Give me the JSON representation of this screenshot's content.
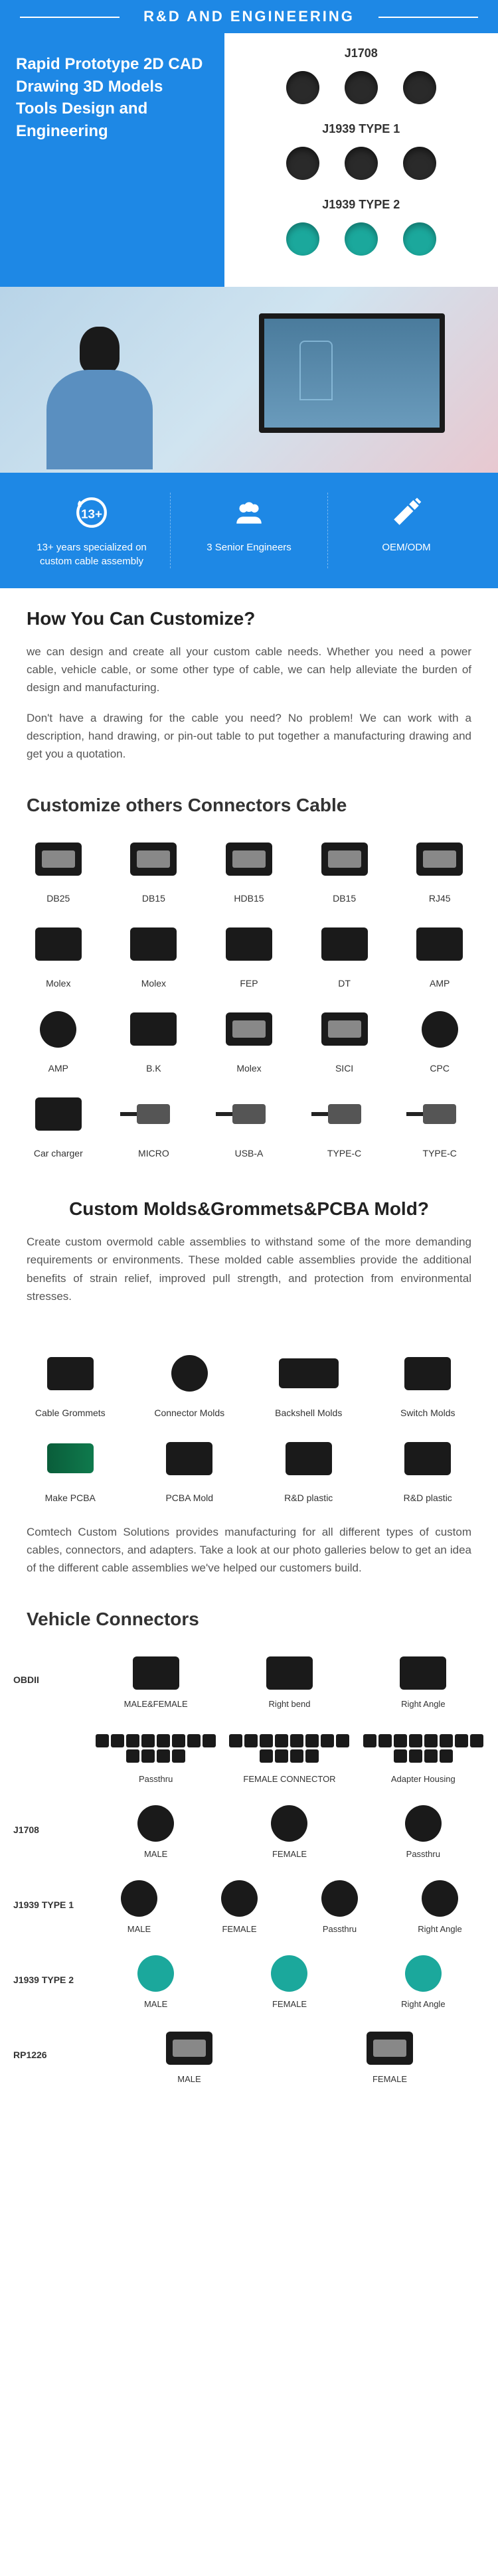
{
  "headerTitle": "R&D AND ENGINEERING",
  "hero": {
    "title": "Rapid Prototype 2D CAD Drawing 3D Models Tools Design and Engineering",
    "connectors": [
      {
        "label": "J1708",
        "variants": 3,
        "color": "dark"
      },
      {
        "label": "J1939 TYPE 1",
        "variants": 3,
        "color": "dark"
      },
      {
        "label": "J1939 TYPE 2",
        "variants": 3,
        "color": "teal"
      }
    ]
  },
  "stats": [
    {
      "icon": "badge",
      "text": "13+ years specialized on custom cable assembly"
    },
    {
      "icon": "team",
      "text": "3 Senior Engineers"
    },
    {
      "icon": "pencil",
      "text": "OEM/ODM"
    }
  ],
  "customize": {
    "title": "How You Can Customize?",
    "p1": "we can design and create all your custom cable needs. Whether you need a power cable, vehicle cable, or some other type of cable, we can help alleviate the burden of design and manufacturing.",
    "p2": "Don't have a drawing for the cable you need? No problem! We can work with a description, hand drawing, or pin-out table to put together a manufacturing drawing and get you a quotation."
  },
  "connectorsTitle": "Customize others Connectors Cable",
  "connectorsGrid": [
    {
      "label": "DB25",
      "shape": "port"
    },
    {
      "label": "DB15",
      "shape": "port"
    },
    {
      "label": "HDB15",
      "shape": "port"
    },
    {
      "label": "DB15",
      "shape": "port"
    },
    {
      "label": "RJ45",
      "shape": "port"
    },
    {
      "label": "Molex",
      "shape": "default"
    },
    {
      "label": "Molex",
      "shape": "default"
    },
    {
      "label": "FEP",
      "shape": "default"
    },
    {
      "label": "DT",
      "shape": "default"
    },
    {
      "label": "AMP",
      "shape": "default"
    },
    {
      "label": "AMP",
      "shape": "round"
    },
    {
      "label": "B.K",
      "shape": "default"
    },
    {
      "label": "Molex",
      "shape": "port"
    },
    {
      "label": "SICI",
      "shape": "port"
    },
    {
      "label": "CPC",
      "shape": "round"
    },
    {
      "label": "Car charger",
      "shape": "default"
    },
    {
      "label": "MICRO",
      "shape": "usb"
    },
    {
      "label": "USB-A",
      "shape": "usb"
    },
    {
      "label": "TYPE-C",
      "shape": "usb"
    },
    {
      "label": "TYPE-C",
      "shape": "usb"
    }
  ],
  "molds": {
    "title": "Custom Molds&Grommets&PCBA Mold?",
    "p1": "Create custom overmold cable assemblies to withstand some of the more demanding requirements or environments. These molded cable assemblies provide the additional benefits of strain relief, improved pull strength, and protection from environmental stresses.",
    "grid": [
      {
        "label": "Cable Grommets",
        "shape": "default"
      },
      {
        "label": "Connector Molds",
        "shape": "round"
      },
      {
        "label": "Backshell Molds",
        "shape": "wide"
      },
      {
        "label": "Switch Molds",
        "shape": "default"
      },
      {
        "label": "Make PCBA",
        "shape": "pcb"
      },
      {
        "label": "PCBA Mold",
        "shape": "default"
      },
      {
        "label": "R&D plastic",
        "shape": "default"
      },
      {
        "label": "R&D plastic",
        "shape": "default"
      }
    ],
    "p2": "Comtech Custom Solutions provides manufacturing for all different types of custom cables, connectors, and adapters. Take a look at our photo galleries below to get an idea of the different cable assemblies we've helped our customers build."
  },
  "vehicleTitle": "Vehicle Connectors",
  "vehicleRows": [
    {
      "label": "OBDII",
      "items": [
        {
          "label": "MALE&FEMALE",
          "shape": "default"
        },
        {
          "label": "Right bend",
          "shape": "default"
        },
        {
          "label": "Right Angle",
          "shape": "default"
        }
      ]
    },
    {
      "label": "",
      "items": [
        {
          "label": "Passthru",
          "shape": "cluster"
        },
        {
          "label": "FEMALE CONNECTOR",
          "shape": "cluster"
        },
        {
          "label": "Adapter Housing",
          "shape": "cluster"
        }
      ]
    },
    {
      "label": "J1708",
      "items": [
        {
          "label": "MALE",
          "shape": "round"
        },
        {
          "label": "FEMALE",
          "shape": "round"
        },
        {
          "label": "Passthru",
          "shape": "round"
        }
      ]
    },
    {
      "label": "J1939 TYPE 1",
      "items": [
        {
          "label": "MALE",
          "shape": "round"
        },
        {
          "label": "FEMALE",
          "shape": "round"
        },
        {
          "label": "Passthru",
          "shape": "round"
        },
        {
          "label": "Right Angle",
          "shape": "round"
        }
      ]
    },
    {
      "label": "J1939 TYPE 2",
      "items": [
        {
          "label": "MALE",
          "shape": "round-teal"
        },
        {
          "label": "FEMALE",
          "shape": "round-teal"
        },
        {
          "label": "Right Angle",
          "shape": "round-teal"
        }
      ]
    },
    {
      "label": "RP1226",
      "items": [
        {
          "label": "MALE",
          "shape": "port"
        },
        {
          "label": "FEMALE",
          "shape": "port"
        }
      ]
    }
  ]
}
